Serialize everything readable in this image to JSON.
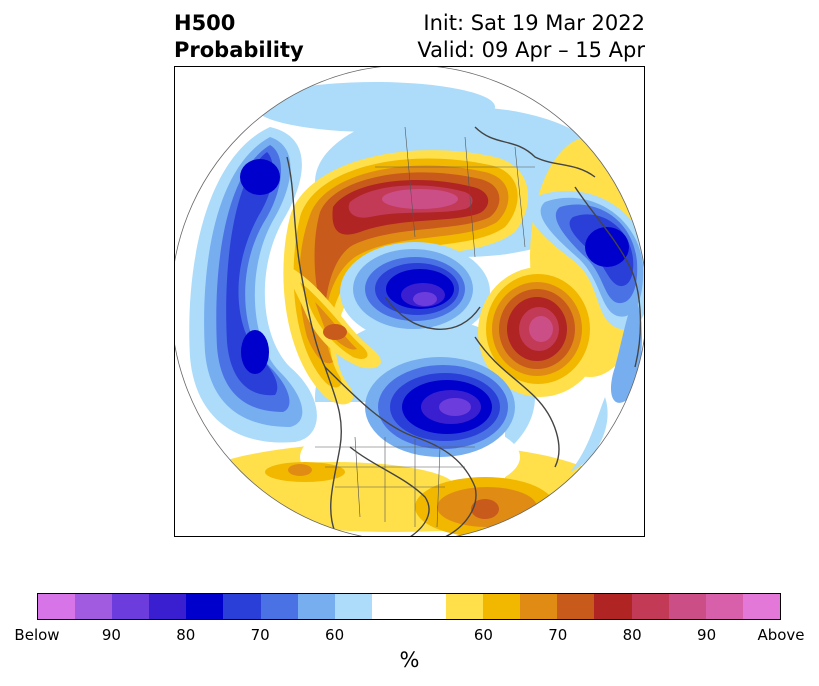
{
  "title": {
    "left_line1": "H500",
    "left_line2": "Probability",
    "right_line1": "Init: Sat 19 Mar 2022",
    "right_line2": "Valid: 09 Apr – 15 Apr"
  },
  "colorbar": {
    "colors": [
      "#d775e8",
      "#a05be0",
      "#6c3cdc",
      "#3a1fd0",
      "#0000cc",
      "#2a3fd8",
      "#4a72e4",
      "#76aef0",
      "#acdcfa",
      "#ffffff",
      "#ffffff",
      "#ffe04a",
      "#f2b800",
      "#e08c14",
      "#c85a1c",
      "#b02424",
      "#c23a56",
      "#cc4e86",
      "#d860aa",
      "#e478d8"
    ],
    "tick_labels": [
      "Below",
      "90",
      "80",
      "70",
      "60",
      "60",
      "70",
      "80",
      "90",
      "Above"
    ],
    "unit": "%"
  },
  "map": {
    "projection": "north-polar-stereographic",
    "anomalies": [
      {
        "name": "pacific-low",
        "sign": "below",
        "peak": 75
      },
      {
        "name": "canada-ridge",
        "sign": "above",
        "peak": 90
      },
      {
        "name": "arctic-low",
        "sign": "below",
        "peak": 85
      },
      {
        "name": "siberia-ridge",
        "sign": "above",
        "peak": 88
      },
      {
        "name": "europe-low",
        "sign": "below",
        "peak": 88
      },
      {
        "name": "asia-low",
        "sign": "below",
        "peak": 78
      },
      {
        "name": "north-atlantic-ridge",
        "sign": "above",
        "peak": 72
      }
    ]
  }
}
